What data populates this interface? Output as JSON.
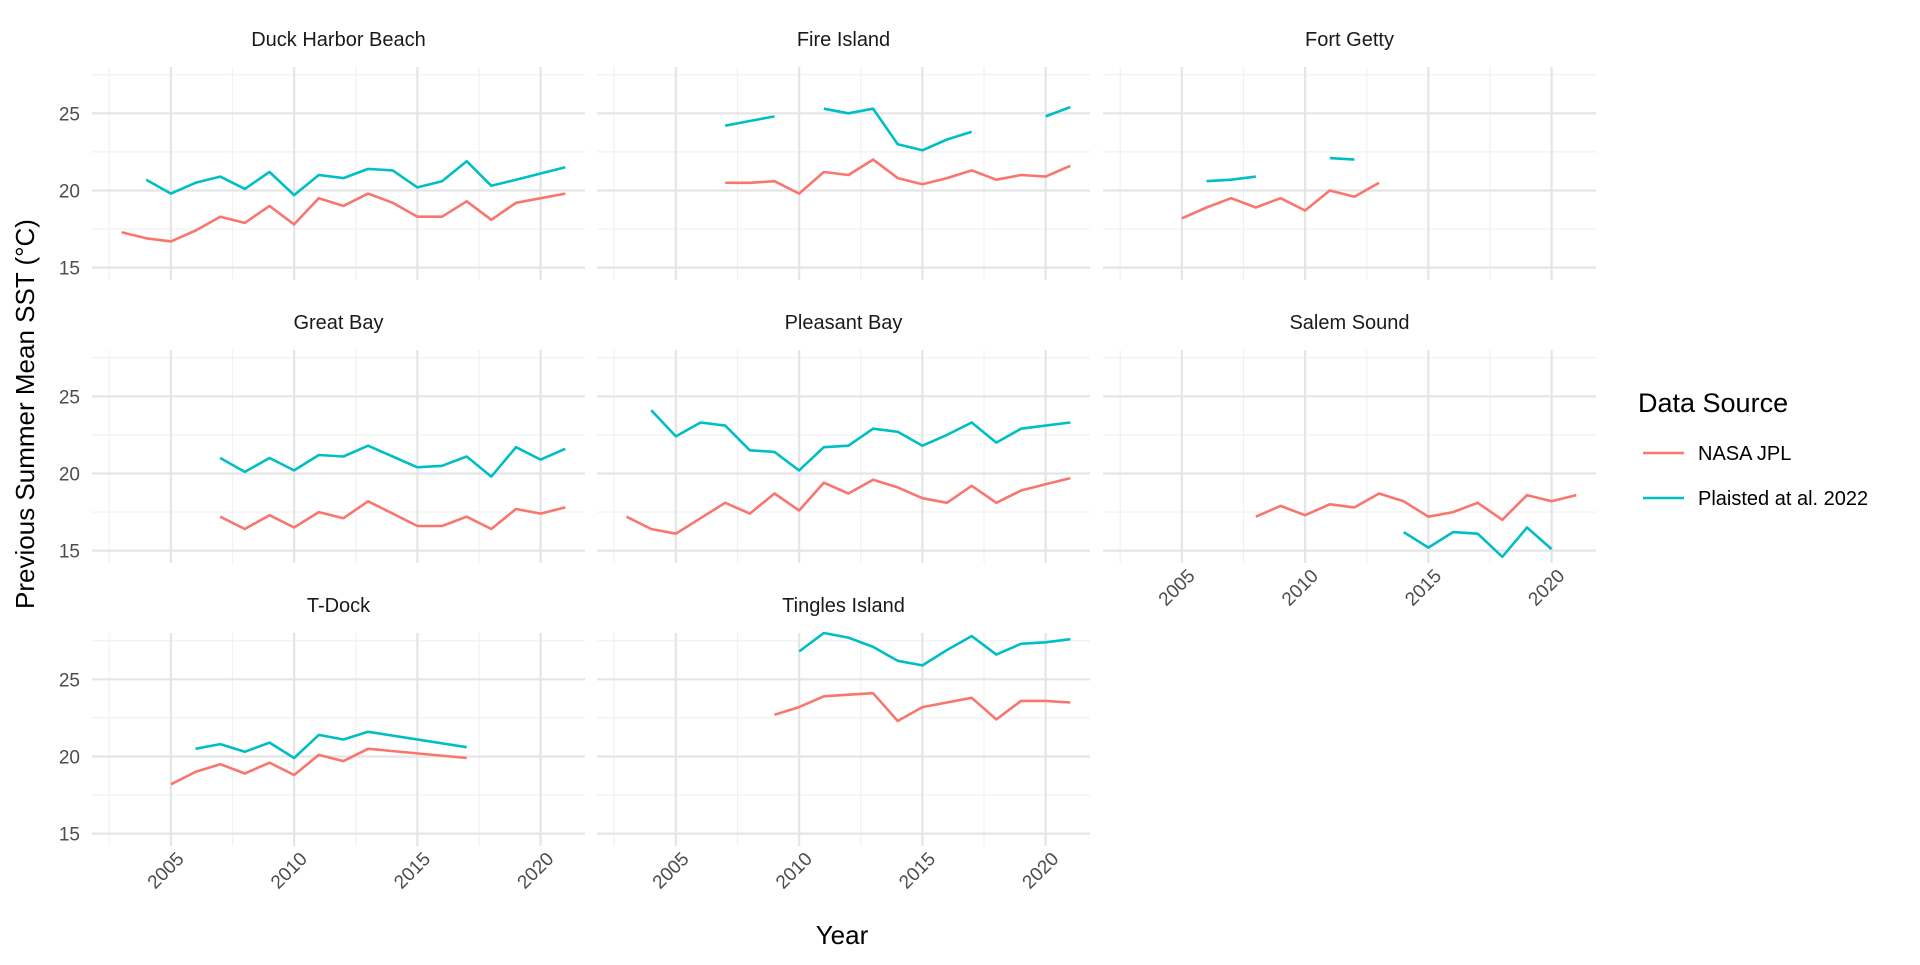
{
  "chart_data": {
    "type": "line",
    "xlabel": "Year",
    "ylabel": "Previous Summer Mean SST (°C)",
    "ylim": [
      14.2,
      28.0
    ],
    "xlim": [
      2001.8,
      2021.8
    ],
    "y_ticks": [
      15,
      20,
      25
    ],
    "x_ticks": [
      2005,
      2010,
      2015,
      2020
    ],
    "grid": true,
    "legend": {
      "title": "Data Source",
      "position": "right",
      "entries": [
        {
          "name": "NASA JPL",
          "color": "#F8766D"
        },
        {
          "name": "Plaisted at al. 2022",
          "color": "#00BFC4"
        }
      ]
    },
    "facets": [
      {
        "title": "Duck Harbor Beach",
        "series": [
          {
            "name": "NASA JPL",
            "x": [
              2003,
              2004,
              2005,
              2006,
              2007,
              2008,
              2009,
              2010,
              2011,
              2012,
              2013,
              2014,
              2015,
              2016,
              2017,
              2018,
              2019,
              2020,
              2021
            ],
            "values": [
              17.3,
              16.9,
              16.7,
              17.4,
              18.3,
              17.9,
              19.0,
              17.8,
              19.5,
              19.0,
              19.8,
              19.2,
              18.3,
              18.3,
              19.3,
              18.1,
              19.2,
              19.5,
              19.8
            ]
          },
          {
            "name": "Plaisted at al. 2022",
            "x": [
              2004,
              2005,
              2006,
              2007,
              2008,
              2009,
              2010,
              2011,
              2012,
              2013,
              2014,
              2015,
              2016,
              2017,
              2018,
              2019,
              2020,
              2021
            ],
            "values": [
              20.7,
              19.8,
              20.5,
              20.9,
              20.1,
              21.2,
              19.7,
              21.0,
              20.8,
              21.4,
              21.3,
              20.2,
              20.6,
              21.9,
              20.3,
              20.7,
              21.1,
              21.5
            ]
          }
        ]
      },
      {
        "title": "Fire Island",
        "series": [
          {
            "name": "NASA JPL",
            "x": [
              2007,
              2008,
              2009,
              2010,
              2011,
              2012,
              2013,
              2014,
              2015,
              2016,
              2017,
              2018,
              2019,
              2020,
              2021
            ],
            "values": [
              20.5,
              20.5,
              20.6,
              19.8,
              21.2,
              21.0,
              22.0,
              20.8,
              20.4,
              20.8,
              21.3,
              20.7,
              21.0,
              20.9,
              21.6
            ]
          },
          {
            "name": "Plaisted at al. 2022",
            "x": [
              2007,
              2008,
              2009,
              null,
              2011,
              2012,
              2013,
              2014,
              2015,
              2016,
              2017,
              null,
              2020,
              2021
            ],
            "values": [
              24.2,
              24.5,
              24.8,
              null,
              25.3,
              25.0,
              25.3,
              23.0,
              22.6,
              23.3,
              23.8,
              null,
              24.8,
              25.4
            ]
          }
        ]
      },
      {
        "title": "Fort Getty",
        "series": [
          {
            "name": "NASA JPL",
            "x": [
              2005,
              2006,
              2007,
              2008,
              2009,
              2010,
              2011,
              2012,
              2013
            ],
            "values": [
              18.2,
              18.9,
              19.5,
              18.9,
              19.5,
              18.7,
              20.0,
              19.6,
              20.5
            ]
          },
          {
            "name": "Plaisted at al. 2022",
            "x": [
              2006,
              2007,
              2008,
              null,
              2011,
              2012
            ],
            "values": [
              20.6,
              20.7,
              20.9,
              null,
              22.1,
              22.0
            ]
          }
        ]
      },
      {
        "title": "Great Bay",
        "series": [
          {
            "name": "NASA JPL",
            "x": [
              2007,
              2008,
              2009,
              2010,
              2011,
              2012,
              2013,
              2014,
              2015,
              2016,
              2017,
              2018,
              2019,
              2020,
              2021
            ],
            "values": [
              17.2,
              16.4,
              17.3,
              16.5,
              17.5,
              17.1,
              18.2,
              17.4,
              16.6,
              16.6,
              17.2,
              16.4,
              17.7,
              17.4,
              17.8
            ]
          },
          {
            "name": "Plaisted at al. 2022",
            "x": [
              2007,
              2008,
              2009,
              2010,
              2011,
              2012,
              2013,
              2014,
              2015,
              2016,
              2017,
              2018,
              2019,
              2020,
              2021
            ],
            "values": [
              21.0,
              20.1,
              21.0,
              20.2,
              21.2,
              21.1,
              21.8,
              21.1,
              20.4,
              20.5,
              21.1,
              19.8,
              21.7,
              20.9,
              21.6
            ]
          }
        ]
      },
      {
        "title": "Pleasant Bay",
        "series": [
          {
            "name": "NASA JPL",
            "x": [
              2003,
              2004,
              2005,
              2006,
              2007,
              2008,
              2009,
              2010,
              2011,
              2012,
              2013,
              2014,
              2015,
              2016,
              2017,
              2018,
              2019,
              2020,
              2021
            ],
            "values": [
              17.2,
              16.4,
              16.1,
              17.1,
              18.1,
              17.4,
              18.7,
              17.6,
              19.4,
              18.7,
              19.6,
              19.1,
              18.4,
              18.1,
              19.2,
              18.1,
              18.9,
              19.3,
              19.7
            ]
          },
          {
            "name": "Plaisted at al. 2022",
            "x": [
              2004,
              2005,
              2006,
              2007,
              2008,
              2009,
              2010,
              2011,
              2012,
              2013,
              2014,
              2015,
              2016,
              2017,
              2018,
              2019,
              2020,
              2021
            ],
            "values": [
              24.1,
              22.4,
              23.3,
              23.1,
              21.5,
              21.4,
              20.2,
              21.7,
              21.8,
              22.9,
              22.7,
              21.8,
              22.5,
              23.3,
              22.0,
              22.9,
              23.1,
              23.3
            ]
          }
        ]
      },
      {
        "title": "Salem Sound",
        "series": [
          {
            "name": "NASA JPL",
            "x": [
              2008,
              2009,
              2010,
              2011,
              2012,
              2013,
              2014,
              2015,
              2016,
              2017,
              2018,
              2019,
              2020,
              2021
            ],
            "values": [
              17.2,
              17.9,
              17.3,
              18.0,
              17.8,
              18.7,
              18.2,
              17.2,
              17.5,
              18.1,
              17.0,
              18.6,
              18.2,
              18.6
            ]
          },
          {
            "name": "Plaisted at al. 2022",
            "x": [
              2014,
              2015,
              2016,
              2017,
              2018,
              2019,
              2020
            ],
            "values": [
              16.2,
              15.2,
              16.2,
              16.1,
              14.6,
              16.5,
              15.1
            ]
          }
        ]
      },
      {
        "title": "T-Dock",
        "series": [
          {
            "name": "NASA JPL",
            "x": [
              2005,
              2006,
              2007,
              2008,
              2009,
              2010,
              2011,
              2012,
              2013,
              2017
            ],
            "values": [
              18.2,
              19.0,
              19.5,
              18.9,
              19.6,
              18.8,
              20.1,
              19.7,
              20.5,
              19.9
            ]
          },
          {
            "name": "Plaisted at al. 2022",
            "x": [
              2006,
              2007,
              2008,
              2009,
              2010,
              2011,
              2012,
              2013,
              2017
            ],
            "values": [
              20.5,
              20.8,
              20.3,
              20.9,
              19.9,
              21.4,
              21.1,
              21.6,
              20.6
            ]
          }
        ]
      },
      {
        "title": "Tingles Island",
        "series": [
          {
            "name": "NASA JPL",
            "x": [
              2009,
              2010,
              2011,
              2012,
              2013,
              2014,
              2015,
              2016,
              2017,
              2018,
              2019,
              2020,
              2021
            ],
            "values": [
              22.7,
              23.2,
              23.9,
              24.0,
              24.1,
              22.3,
              23.2,
              23.5,
              23.8,
              22.4,
              23.6,
              23.6,
              23.5
            ]
          },
          {
            "name": "Plaisted at al. 2022",
            "x": [
              2010,
              2011,
              2012,
              2013,
              2014,
              2015,
              2016,
              2017,
              2018,
              2019,
              2020,
              2021
            ],
            "values": [
              26.8,
              28.0,
              27.7,
              27.1,
              26.2,
              25.9,
              26.9,
              27.8,
              26.6,
              27.3,
              27.4,
              27.6
            ]
          }
        ]
      }
    ]
  }
}
